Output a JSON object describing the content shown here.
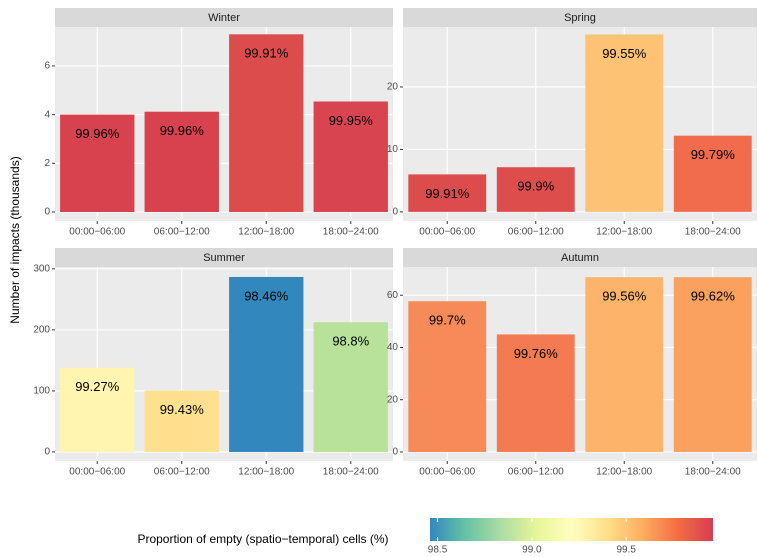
{
  "chart_data": [
    {
      "type": "bar",
      "title": "Winter",
      "categories": [
        "00:00−06:00",
        "06:00−12:00",
        "12:00−18:00",
        "18:00−24:00"
      ],
      "values": [
        4.0,
        4.12,
        7.3,
        4.54
      ],
      "bar_labels": [
        "99.96%",
        "99.96%",
        "99.91%",
        "99.95%"
      ],
      "colors": [
        "#d7424e",
        "#d7424e",
        "#dc4c4c",
        "#d84550"
      ],
      "ylim": [
        -0.37,
        7.6
      ],
      "yticks": [
        0,
        2,
        4,
        6
      ],
      "grid": true
    },
    {
      "type": "bar",
      "title": "Spring",
      "categories": [
        "00:00−06:00",
        "06:00−12:00",
        "12:00−18:00",
        "18:00−24:00"
      ],
      "values": [
        6.0,
        7.15,
        28.4,
        12.2
      ],
      "bar_labels": [
        "99.91%",
        "99.9%",
        "99.55%",
        "99.79%"
      ],
      "colors": [
        "#dc4c4c",
        "#dd4d4b",
        "#fdc274",
        "#f06c4d"
      ],
      "ylim": [
        -1.46,
        29.6
      ],
      "yticks": [
        0,
        10,
        20
      ],
      "grid": true
    },
    {
      "type": "bar",
      "title": "Summer",
      "categories": [
        "00:00−06:00",
        "06:00−12:00",
        "12:00−18:00",
        "18:00−24:00"
      ],
      "values": [
        138,
        100.5,
        286.7,
        212.5
      ],
      "bar_labels": [
        "99.27%",
        "99.43%",
        "98.46%",
        "98.8%"
      ],
      "colors": [
        "#fff5b0",
        "#fee08e",
        "#3288bd",
        "#b8e19a"
      ],
      "ylim": [
        -14.8,
        303
      ],
      "yticks": [
        0,
        100,
        200,
        300
      ],
      "grid": true
    },
    {
      "type": "bar",
      "title": "Autumn",
      "categories": [
        "00:00−06:00",
        "06:00−12:00",
        "12:00−18:00",
        "18:00−24:00"
      ],
      "values": [
        57.7,
        45,
        66.9,
        66.9
      ],
      "bar_labels": [
        "99.7%",
        "99.76%",
        "99.56%",
        "99.62%"
      ],
      "colors": [
        "#f68a58",
        "#f47b51",
        "#fdb46a",
        "#faa15f"
      ],
      "ylim": [
        -3.46,
        70.8
      ],
      "yticks": [
        0,
        20,
        40,
        60
      ],
      "grid": true
    }
  ],
  "y_label": "Number of impacts (thousands)",
  "colorbar": {
    "title": "Proportion of empty (spatio−temporal) cells (%)",
    "lim": [
      98.46,
      99.96
    ],
    "ticks": [
      98.5,
      {
        "value": 99,
        "label": "99.0"
      },
      99.5
    ],
    "colors": [
      "#3288bd",
      "#66c2a5",
      "#abdda4",
      "#e6f598",
      "#ffffbf",
      "#fee08b",
      "#fdae61",
      "#f46d43",
      "#d53e4f"
    ]
  }
}
